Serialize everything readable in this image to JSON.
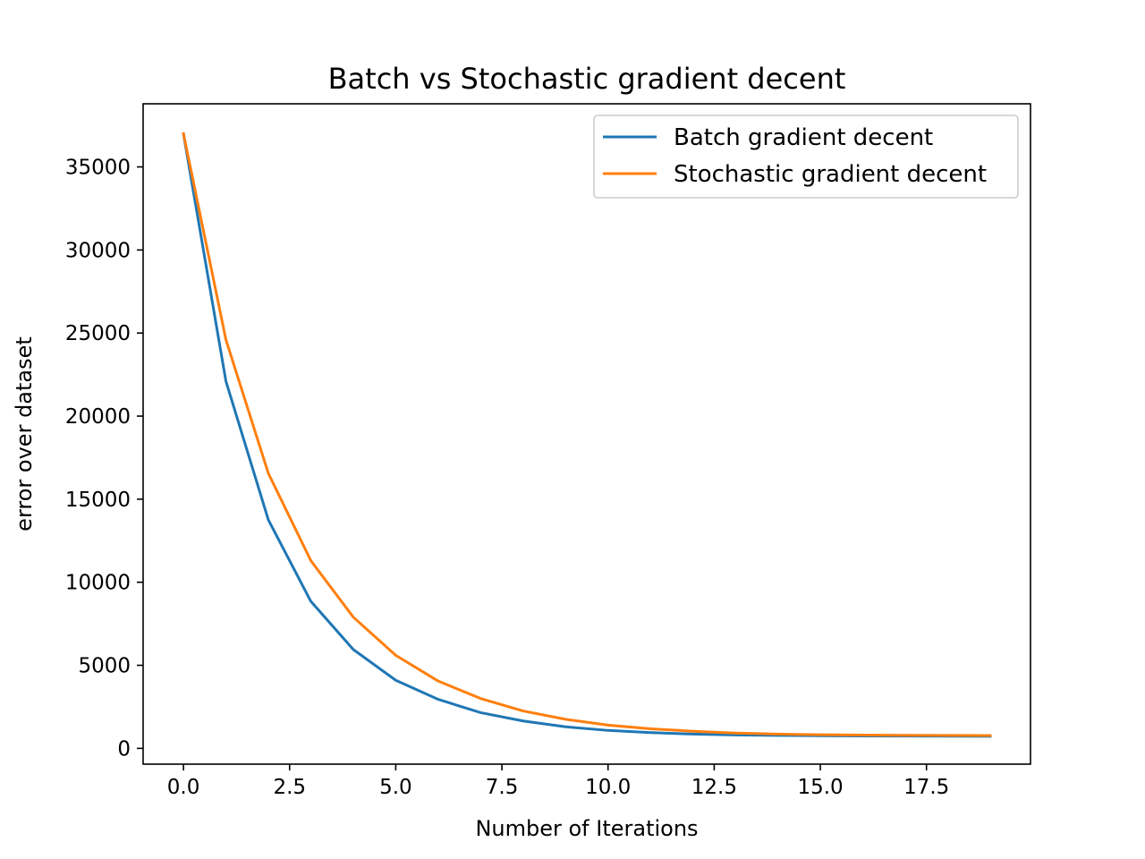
{
  "chart_data": {
    "type": "line",
    "title": "Batch vs Stochastic gradient decent",
    "xlabel": "Number of Iterations",
    "ylabel": "error over dataset",
    "xlim": [
      -0.95,
      19.95
    ],
    "ylim": [
      -950,
      38800
    ],
    "xticks": [
      0.0,
      2.5,
      5.0,
      7.5,
      10.0,
      12.5,
      15.0,
      17.5
    ],
    "xtick_labels": [
      "0.0",
      "2.5",
      "5.0",
      "7.5",
      "10.0",
      "12.5",
      "15.0",
      "17.5"
    ],
    "yticks": [
      0,
      5000,
      10000,
      15000,
      20000,
      25000,
      30000,
      35000
    ],
    "ytick_labels": [
      "0",
      "5000",
      "10000",
      "15000",
      "20000",
      "25000",
      "30000",
      "35000"
    ],
    "grid": false,
    "legend_position": "top-right",
    "x": [
      0,
      1,
      2,
      3,
      4,
      5,
      6,
      7,
      8,
      9,
      10,
      11,
      12,
      13,
      14,
      15,
      16,
      17,
      18,
      19
    ],
    "series": [
      {
        "name": "Batch gradient decent",
        "color": "#1f77b4",
        "values": [
          37000,
          22100,
          13750,
          8850,
          5950,
          4100,
          2950,
          2150,
          1650,
          1300,
          1080,
          950,
          860,
          810,
          780,
          760,
          750,
          740,
          735,
          730
        ]
      },
      {
        "name": "Stochastic gradient decent",
        "color": "#ff7f0e",
        "values": [
          37000,
          24600,
          16550,
          11300,
          7900,
          5600,
          4050,
          3000,
          2250,
          1750,
          1400,
          1180,
          1030,
          920,
          860,
          820,
          800,
          790,
          780,
          775
        ]
      }
    ]
  }
}
